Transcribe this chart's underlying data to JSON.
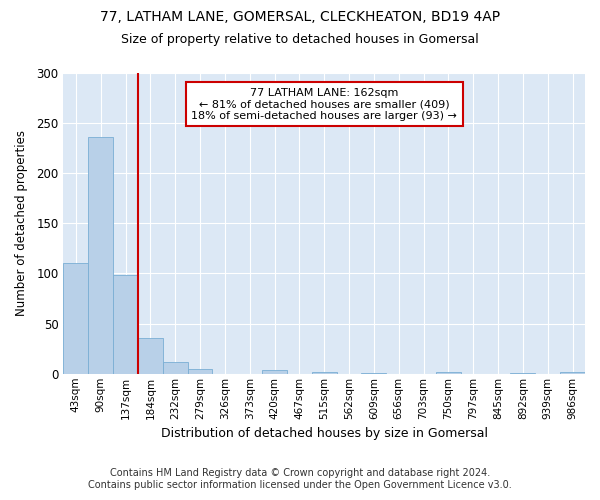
{
  "title1": "77, LATHAM LANE, GOMERSAL, CLECKHEATON, BD19 4AP",
  "title2": "Size of property relative to detached houses in Gomersal",
  "xlabel": "Distribution of detached houses by size in Gomersal",
  "ylabel": "Number of detached properties",
  "footer1": "Contains HM Land Registry data © Crown copyright and database right 2024.",
  "footer2": "Contains public sector information licensed under the Open Government Licence v3.0.",
  "bin_labels": [
    "43sqm",
    "90sqm",
    "137sqm",
    "184sqm",
    "232sqm",
    "279sqm",
    "326sqm",
    "373sqm",
    "420sqm",
    "467sqm",
    "515sqm",
    "562sqm",
    "609sqm",
    "656sqm",
    "703sqm",
    "750sqm",
    "797sqm",
    "845sqm",
    "892sqm",
    "939sqm",
    "986sqm"
  ],
  "bar_values": [
    110,
    236,
    98,
    36,
    12,
    5,
    0,
    0,
    4,
    0,
    2,
    0,
    1,
    0,
    0,
    2,
    0,
    0,
    1,
    0,
    2
  ],
  "bar_color": "#b8d0e8",
  "bar_edge_color": "#7aaed4",
  "red_line_x": 2.5,
  "red_line_color": "#cc0000",
  "annotation_text": "77 LATHAM LANE: 162sqm\n← 81% of detached houses are smaller (409)\n18% of semi-detached houses are larger (93) →",
  "annotation_box_color": "#ffffff",
  "annotation_box_edge_color": "#cc0000",
  "ylim": [
    0,
    300
  ],
  "yticks": [
    0,
    50,
    100,
    150,
    200,
    250,
    300
  ],
  "fig_bg_color": "#ffffff",
  "plot_bg_color": "#dce8f5"
}
